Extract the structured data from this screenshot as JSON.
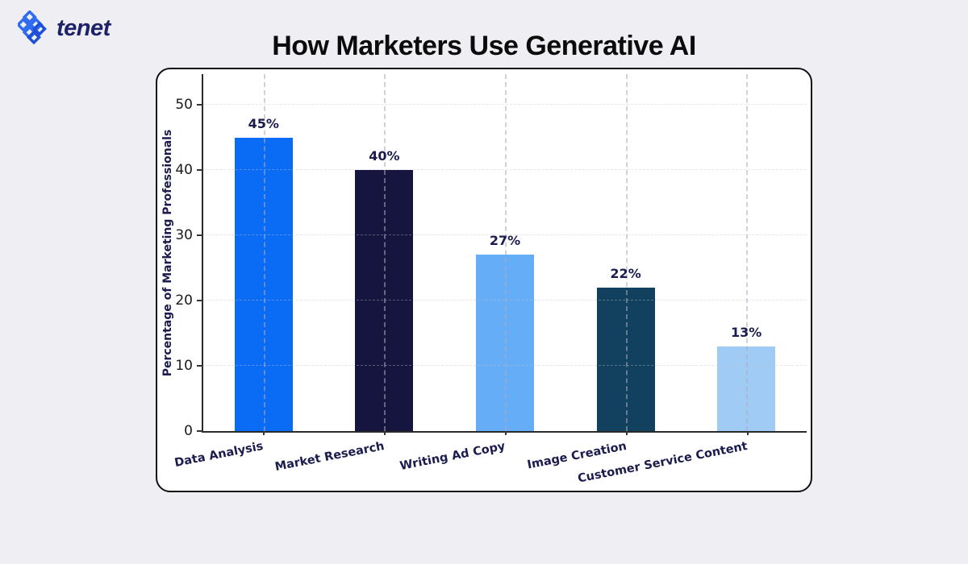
{
  "page": {
    "background_color": "#efeef2"
  },
  "brand": {
    "name": "tenet",
    "wordmark_color": "#1e2368",
    "icon": "tenet-diamonds-logo-icon",
    "icon_color_primary": "#2f6cf0",
    "icon_color_secondary": "#1d4fd8"
  },
  "header": {
    "title": "How Marketers Use Generative AI"
  },
  "chart_data": {
    "type": "bar",
    "title": "How Marketers Use Generative AI",
    "categories": [
      "Data Analysis",
      "Market Research",
      "Writing Ad Copy",
      "Image Creation",
      "Customer Service Content"
    ],
    "values": [
      45,
      40,
      27,
      22,
      13
    ],
    "value_labels": [
      "45%",
      "40%",
      "27%",
      "22%",
      "13%"
    ],
    "bar_colors": [
      "#0a6cf5",
      "#15153f",
      "#66adf7",
      "#12405f",
      "#a0cbf5"
    ],
    "xlabel": "",
    "ylabel": "Percentage of Marketing Professionals",
    "yticks": [
      0,
      10,
      20,
      30,
      40,
      50
    ],
    "ylim": [
      0,
      54.7
    ],
    "grid": {
      "vertical": "dashed line at each bar center",
      "horizontal": "faint dashed line at each y tick"
    },
    "legend": "none",
    "value_label_color": "#1b1b4d",
    "axis_label_color": "#1b1b4d",
    "tick_label_color": "#1a1a1a",
    "plot_background": "#ffffff"
  }
}
